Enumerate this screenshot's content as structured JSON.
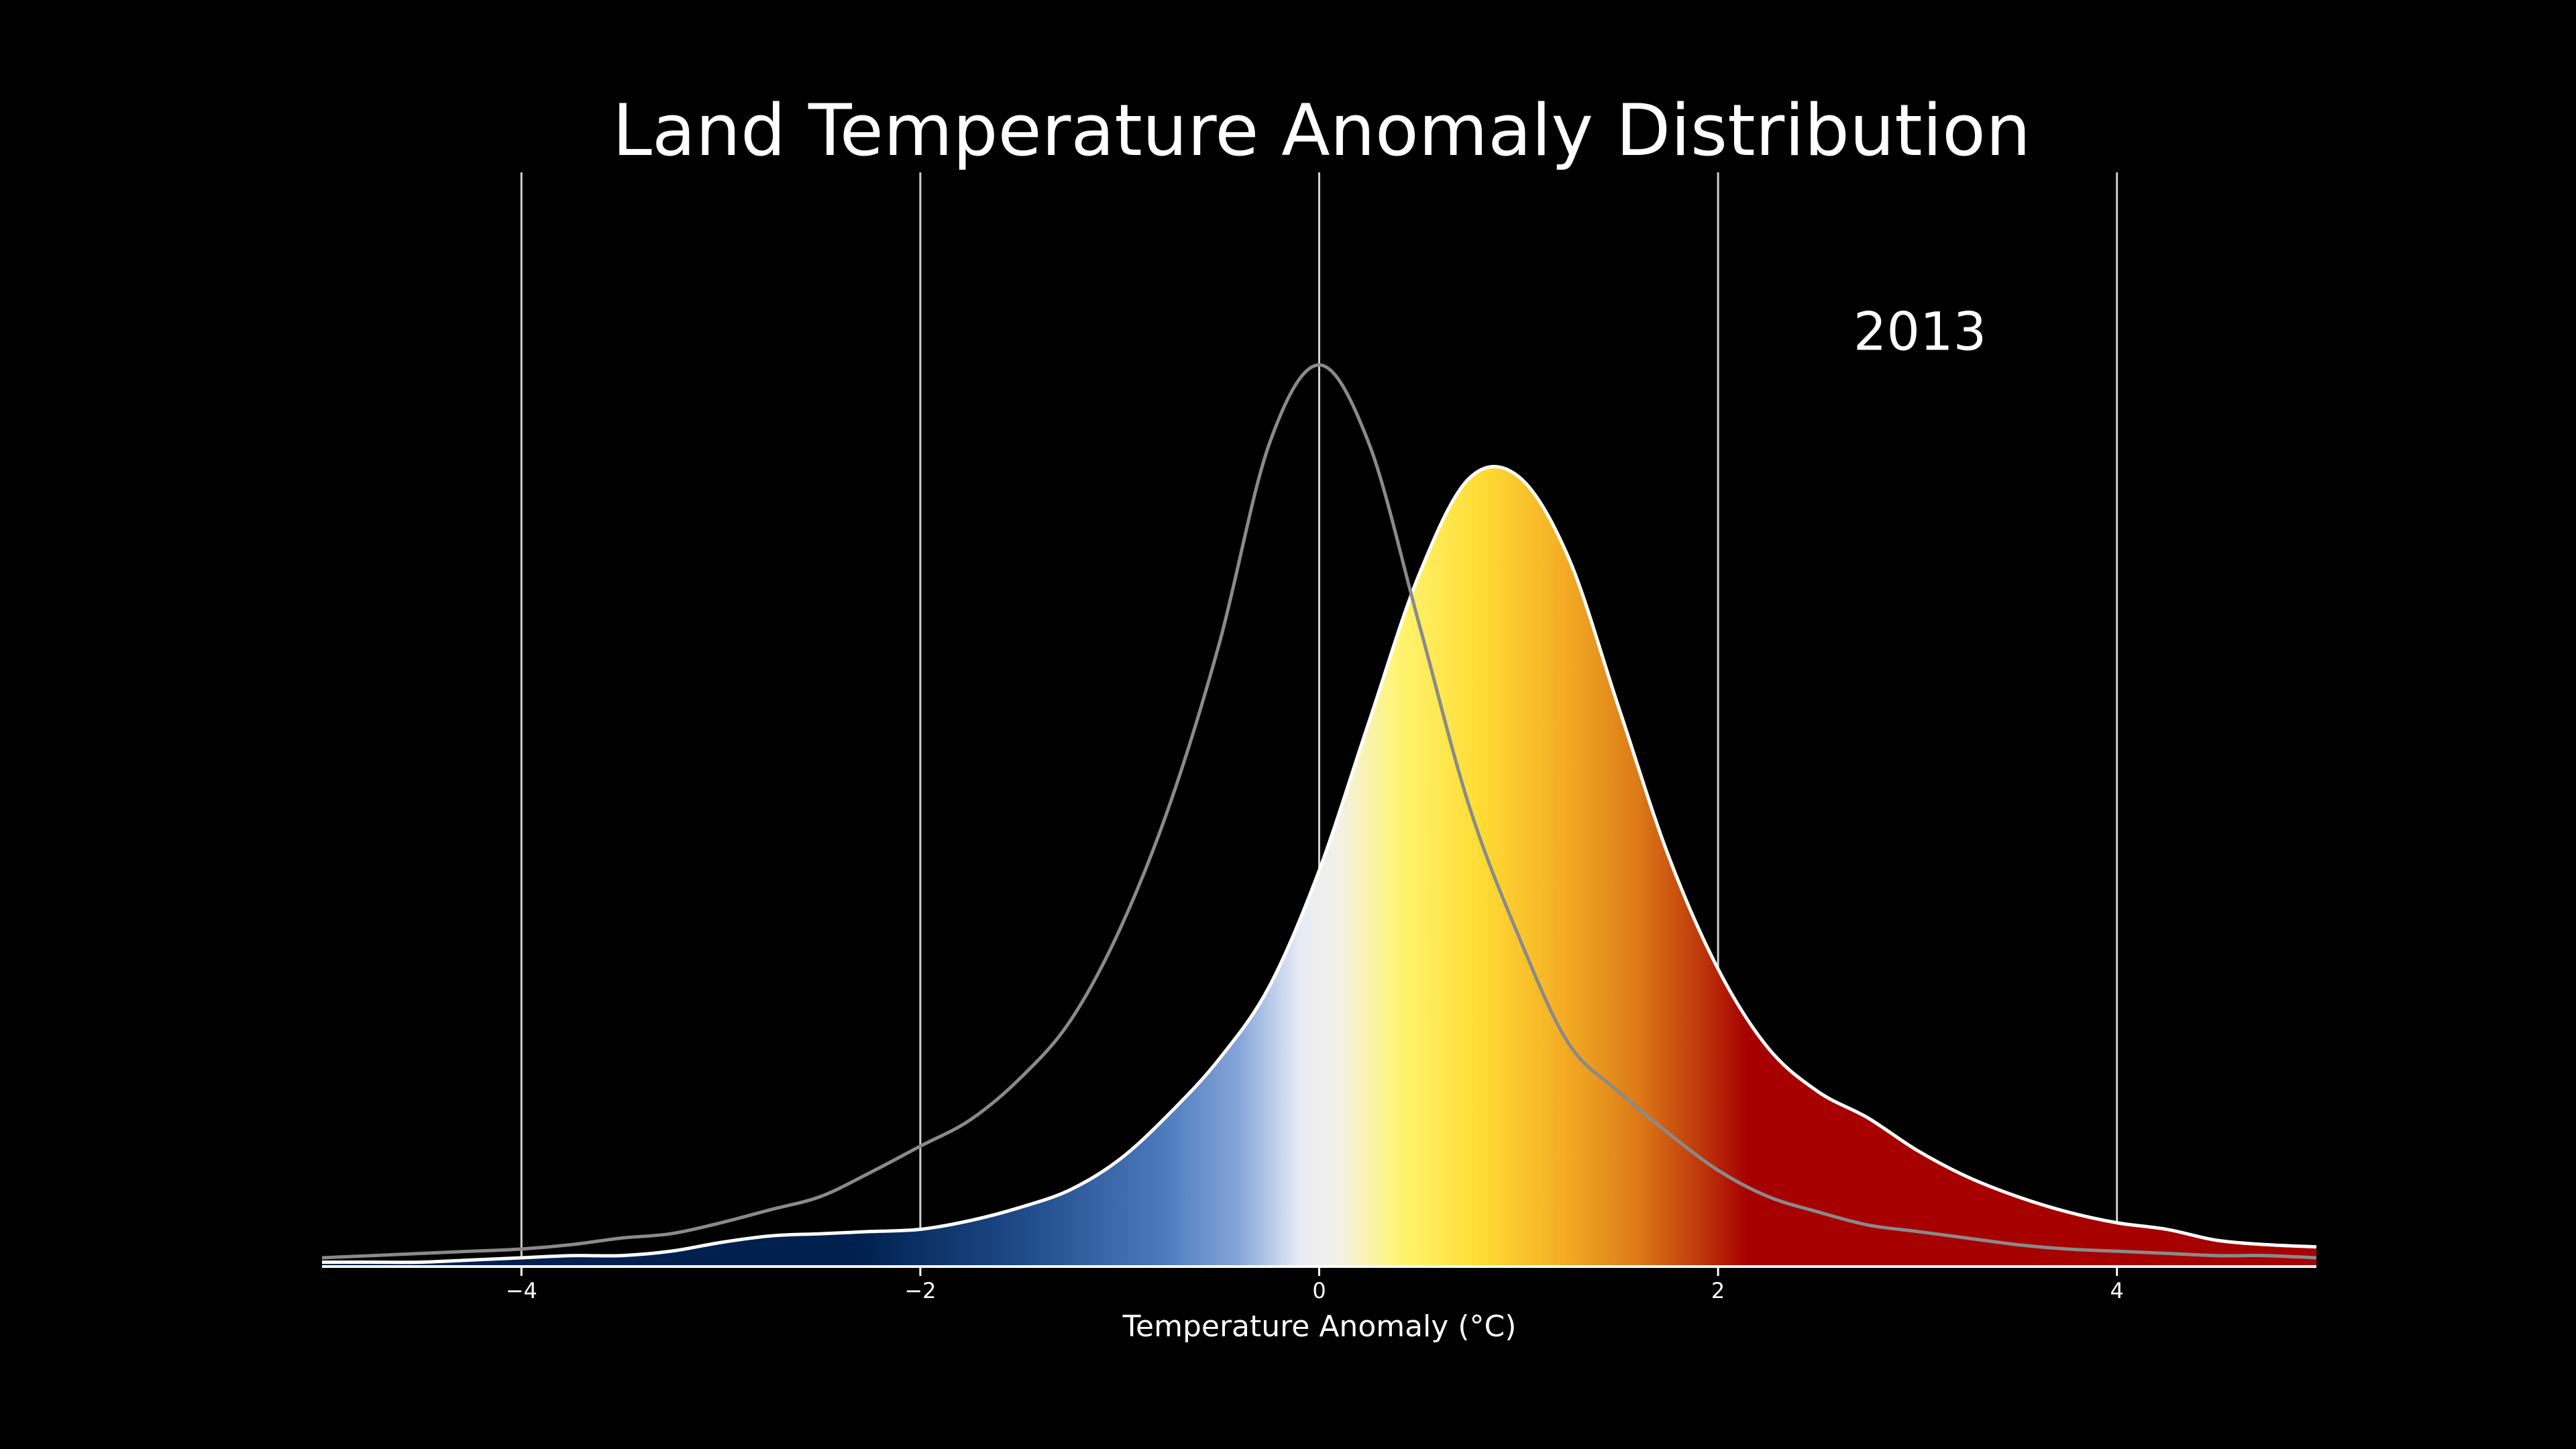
{
  "chart_data": {
    "type": "density",
    "title": "Land Temperature Anomaly Distribution",
    "xlabel": "Temperature Anomaly (°C)",
    "x": [
      -5,
      -4.75,
      -4.5,
      -4.25,
      -4,
      -3.75,
      -3.5,
      -3.25,
      -3,
      -2.75,
      -2.5,
      -2.25,
      -2,
      -1.75,
      -1.5,
      -1.25,
      -1,
      -0.75,
      -0.5,
      -0.25,
      0,
      0.25,
      0.5,
      0.75,
      1,
      1.25,
      1.5,
      1.75,
      2,
      2.25,
      2.5,
      2.75,
      3,
      3.25,
      3.5,
      3.75,
      4,
      4.25,
      4.5,
      4.75,
      5
    ],
    "series": [
      {
        "name": "2013",
        "color": "#ffffff",
        "filled": true,
        "values": [
          0.002,
          0.002,
          0.002,
          0.003,
          0.004,
          0.005,
          0.005,
          0.007,
          0.011,
          0.014,
          0.015,
          0.016,
          0.017,
          0.021,
          0.027,
          0.035,
          0.049,
          0.07,
          0.095,
          0.128,
          0.181,
          0.249,
          0.316,
          0.36,
          0.361,
          0.324,
          0.256,
          0.188,
          0.136,
          0.1,
          0.08,
          0.068,
          0.053,
          0.041,
          0.032,
          0.025,
          0.02,
          0.017,
          0.012,
          0.01,
          0.009
        ]
      },
      {
        "color": "#8a8a8a",
        "filled": false,
        "values": [
          0.004,
          0.005,
          0.006,
          0.007,
          0.008,
          0.01,
          0.013,
          0.015,
          0.02,
          0.026,
          0.032,
          0.043,
          0.055,
          0.067,
          0.086,
          0.112,
          0.154,
          0.211,
          0.285,
          0.376,
          0.412,
          0.376,
          0.294,
          0.211,
          0.151,
          0.102,
          0.08,
          0.061,
          0.044,
          0.032,
          0.025,
          0.019,
          0.016,
          0.013,
          0.01,
          0.008,
          0.007,
          0.006,
          0.005,
          0.005,
          0.004
        ]
      }
    ],
    "xlim": [
      -5,
      5
    ],
    "xticks": [
      {
        "value": -4,
        "label": "−4"
      },
      {
        "value": -2,
        "label": "−2"
      },
      0,
      2,
      4
    ],
    "ylim": [
      0,
      0.5
    ],
    "grid": true
  }
}
